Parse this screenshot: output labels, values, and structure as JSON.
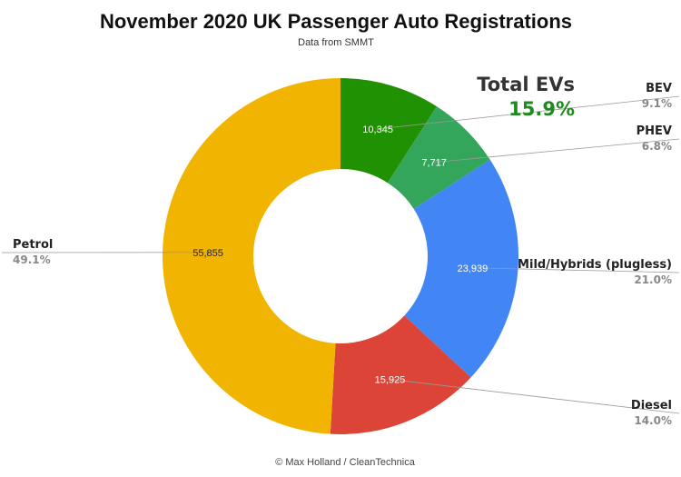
{
  "chart_data": {
    "type": "pie",
    "title": "November 2020 UK Passenger Auto Registrations",
    "subtitle": "Data from SMMT",
    "footer": "© Max Holland / CleanTechnica",
    "slices": [
      {
        "name": "BEV",
        "value": 10345,
        "value_label": "10,345",
        "pct_label": "9.1%",
        "color": "#1f9102",
        "value_text_color": "#ffffff"
      },
      {
        "name": "PHEV",
        "value": 7717,
        "value_label": "7,717",
        "pct_label": "6.8%",
        "color": "#34a65b",
        "value_text_color": "#ffffff"
      },
      {
        "name": "Mild/Hybrids (plugless)",
        "value": 23939,
        "value_label": "23,939",
        "pct_label": "21.0%",
        "color": "#4285f4",
        "value_text_color": "#ffffff"
      },
      {
        "name": "Diesel",
        "value": 15925,
        "value_label": "15,925",
        "pct_label": "14.0%",
        "color": "#db4437",
        "value_text_color": "#ffffff"
      },
      {
        "name": "Petrol",
        "value": 55855,
        "value_label": "55,855",
        "pct_label": "49.1%",
        "color": "#f1b400",
        "value_text_color": "#222222"
      }
    ],
    "callout": {
      "label": "Total EVs",
      "value": "15.9%",
      "color": "#1f8a1f"
    }
  }
}
